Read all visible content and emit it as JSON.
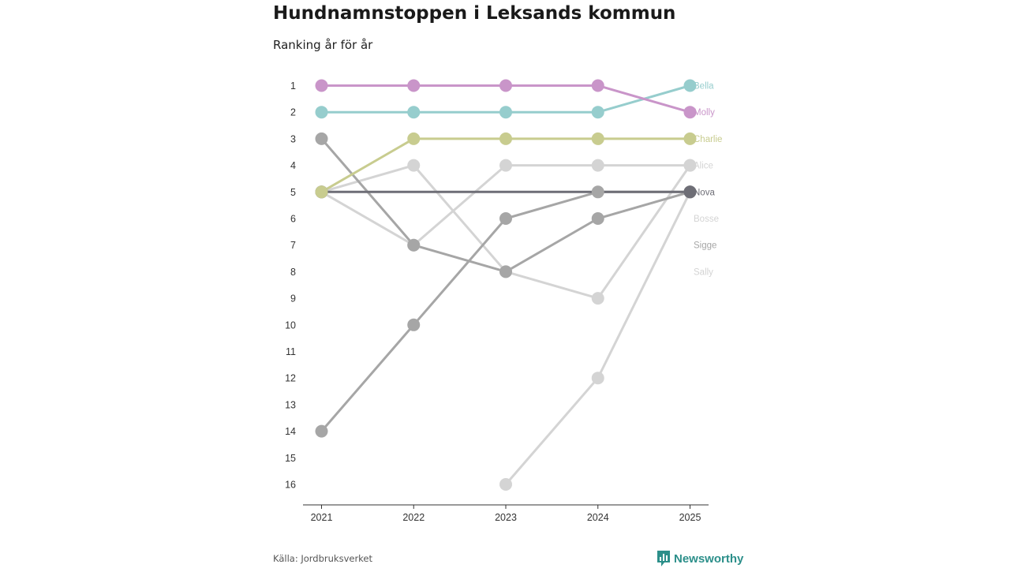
{
  "title": "Hundnamnstoppen i Leksands kommun",
  "subtitle": "Ranking år för år",
  "source": "Källa: Jordbruksverket",
  "brand": {
    "name": "Newsworthy",
    "icon": "chart-logo-icon",
    "color": "#2c8f8a"
  },
  "chart_data": {
    "type": "line",
    "title": "Hundnamnstoppen i Leksands kommun",
    "subtitle": "Ranking år för år",
    "xlabel": "",
    "ylabel": "",
    "x": [
      "2021",
      "2022",
      "2023",
      "2024",
      "2025"
    ],
    "y_ticks": [
      "1",
      "2",
      "3",
      "4",
      "5",
      "6",
      "7",
      "8",
      "9",
      "10",
      "11",
      "12",
      "13",
      "14",
      "15",
      "16"
    ],
    "ylim": [
      1,
      16
    ],
    "y_inverted": true,
    "series": [
      {
        "name": "Bella",
        "color": "#96cdcd",
        "values": [
          2,
          2,
          2,
          2,
          1
        ]
      },
      {
        "name": "Molly",
        "color": "#c995c9",
        "values": [
          1,
          1,
          1,
          1,
          2
        ]
      },
      {
        "name": "Charlie",
        "color": "#c8cc8f",
        "values": [
          5,
          3,
          3,
          3,
          3
        ]
      },
      {
        "name": "Alice",
        "color": "#d4d4d4",
        "values": [
          5,
          4,
          8,
          9,
          4
        ]
      },
      {
        "name": "Nova",
        "color": "#6e6e76",
        "values": [
          5,
          null,
          null,
          null,
          5
        ]
      },
      {
        "name": "Bosse",
        "color": "#d4d4d4",
        "values": [
          null,
          null,
          16,
          12,
          5
        ]
      },
      {
        "name": "Sigge",
        "color": "#a6a6a6",
        "values": [
          3,
          7,
          8,
          6,
          5
        ]
      },
      {
        "name": "Sally",
        "color": "#d4d4d4",
        "values": [
          5,
          7,
          4,
          4,
          4
        ]
      },
      {
        "name": "",
        "color": "#a6a6a6",
        "values": [
          14,
          10,
          6,
          5,
          5
        ]
      }
    ]
  }
}
